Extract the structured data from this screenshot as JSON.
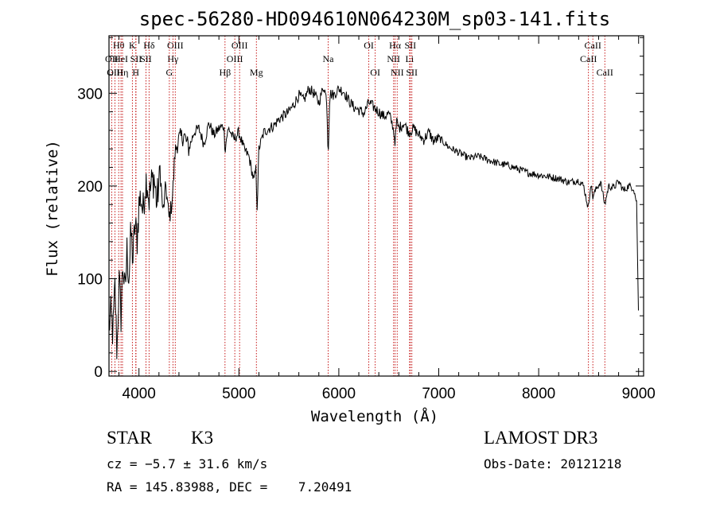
{
  "chart_data": {
    "type": "line",
    "title": "spec-56280-HD094610N064230M_sp03-141.fits",
    "xlabel": "Wavelength (Å)",
    "ylabel": "Flux (relative)",
    "xlim": [
      3700,
      9050
    ],
    "ylim": [
      -5,
      362
    ],
    "x_ticks": [
      4000,
      5000,
      6000,
      7000,
      8000,
      9000
    ],
    "y_ticks": [
      0,
      100,
      200,
      300
    ],
    "series": [
      {
        "name": "flux",
        "x": [
          3700,
          3720,
          3740,
          3760,
          3780,
          3800,
          3820,
          3840,
          3860,
          3880,
          3900,
          3920,
          3940,
          3960,
          3980,
          4000,
          4020,
          4040,
          4060,
          4080,
          4100,
          4120,
          4150,
          4180,
          4210,
          4240,
          4270,
          4300,
          4320,
          4340,
          4360,
          4380,
          4400,
          4450,
          4500,
          4550,
          4600,
          4650,
          4700,
          4750,
          4800,
          4850,
          4861,
          4880,
          4900,
          4950,
          5000,
          5050,
          5100,
          5150,
          5170,
          5183,
          5200,
          5250,
          5300,
          5350,
          5400,
          5450,
          5500,
          5550,
          5600,
          5650,
          5700,
          5750,
          5800,
          5850,
          5880,
          5893,
          5910,
          5950,
          6000,
          6050,
          6100,
          6150,
          6200,
          6250,
          6300,
          6350,
          6400,
          6450,
          6500,
          6540,
          6563,
          6580,
          6600,
          6650,
          6700,
          6750,
          6800,
          6850,
          6900,
          6950,
          7000,
          7100,
          7200,
          7300,
          7400,
          7500,
          7600,
          7700,
          7800,
          7900,
          8000,
          8100,
          8200,
          8300,
          8400,
          8450,
          8498,
          8520,
          8542,
          8580,
          8620,
          8662,
          8700,
          8750,
          8800,
          8850,
          8900,
          8950,
          8980,
          9000
        ],
        "values": [
          50,
          60,
          40,
          90,
          20,
          100,
          60,
          120,
          80,
          130,
          100,
          150,
          120,
          160,
          140,
          180,
          190,
          170,
          200,
          210,
          185,
          200,
          210,
          180,
          220,
          170,
          200,
          165,
          175,
          195,
          235,
          245,
          250,
          255,
          240,
          258,
          262,
          245,
          268,
          255,
          262,
          265,
          238,
          255,
          262,
          250,
          258,
          240,
          232,
          205,
          218,
          175,
          240,
          258,
          262,
          265,
          272,
          276,
          280,
          288,
          298,
          292,
          305,
          300,
          290,
          308,
          292,
          232,
          300,
          298,
          305,
          302,
          292,
          285,
          282,
          278,
          290,
          285,
          280,
          275,
          278,
          265,
          248,
          270,
          262,
          268,
          258,
          262,
          255,
          250,
          258,
          248,
          252,
          242,
          236,
          230,
          232,
          228,
          224,
          222,
          218,
          214,
          212,
          210,
          208,
          204,
          206,
          200,
          175,
          204,
          188,
          198,
          204,
          180,
          200,
          198,
          205,
          195,
          200,
          198,
          182,
          52
        ]
      }
    ],
    "lines": [
      {
        "label": "Hθ",
        "x": 3797,
        "row": 1
      },
      {
        "label": "OII",
        "x": 3727,
        "row": 2
      },
      {
        "label": "OIII",
        "x": 3760,
        "row": 3
      },
      {
        "label": "HeI",
        "x": 3820,
        "row": 2
      },
      {
        "label": "Hη",
        "x": 3835,
        "row": 3
      },
      {
        "label": "K",
        "x": 3934,
        "row": 1
      },
      {
        "label": "SII",
        "x": 3970,
        "row": 2
      },
      {
        "label": "H",
        "x": 3968,
        "row": 3
      },
      {
        "label": "Hδ",
        "x": 4101,
        "row": 1
      },
      {
        "label": "SII",
        "x": 4070,
        "row": 2
      },
      {
        "label": "OIII",
        "x": 4363,
        "row": 1
      },
      {
        "label": "Hγ",
        "x": 4340,
        "row": 2
      },
      {
        "label": "G",
        "x": 4304,
        "row": 3
      },
      {
        "label": "OIII",
        "x": 5007,
        "row": 1
      },
      {
        "label": "OIII",
        "x": 4959,
        "row": 2
      },
      {
        "label": "Hβ",
        "x": 4861,
        "row": 3
      },
      {
        "label": "Mg",
        "x": 5175,
        "row": 3
      },
      {
        "label": "Na",
        "x": 5893,
        "row": 2
      },
      {
        "label": "OI",
        "x": 6300,
        "row": 1
      },
      {
        "label": "OI",
        "x": 6364,
        "row": 3
      },
      {
        "label": "Hα",
        "x": 6563,
        "row": 1
      },
      {
        "label": "NII",
        "x": 6548,
        "row": 2
      },
      {
        "label": "NII",
        "x": 6584,
        "row": 3
      },
      {
        "label": "SII",
        "x": 6716,
        "row": 1
      },
      {
        "label": "Li",
        "x": 6708,
        "row": 2
      },
      {
        "label": "SII",
        "x": 6731,
        "row": 3
      },
      {
        "label": "CaII",
        "x": 8542,
        "row": 1
      },
      {
        "label": "CaII",
        "x": 8498,
        "row": 2
      },
      {
        "label": "CaII",
        "x": 8662,
        "row": 3
      }
    ],
    "line_color": "#c00000"
  },
  "info": {
    "object_class": "STAR",
    "subclass": "K3",
    "survey": "LAMOST DR3",
    "redshift": "cz = −5.7 ± 31.6 km/s",
    "obs_date": "Obs-Date: 20121218",
    "coords": "RA = 145.83988, DEC =    7.20491"
  }
}
